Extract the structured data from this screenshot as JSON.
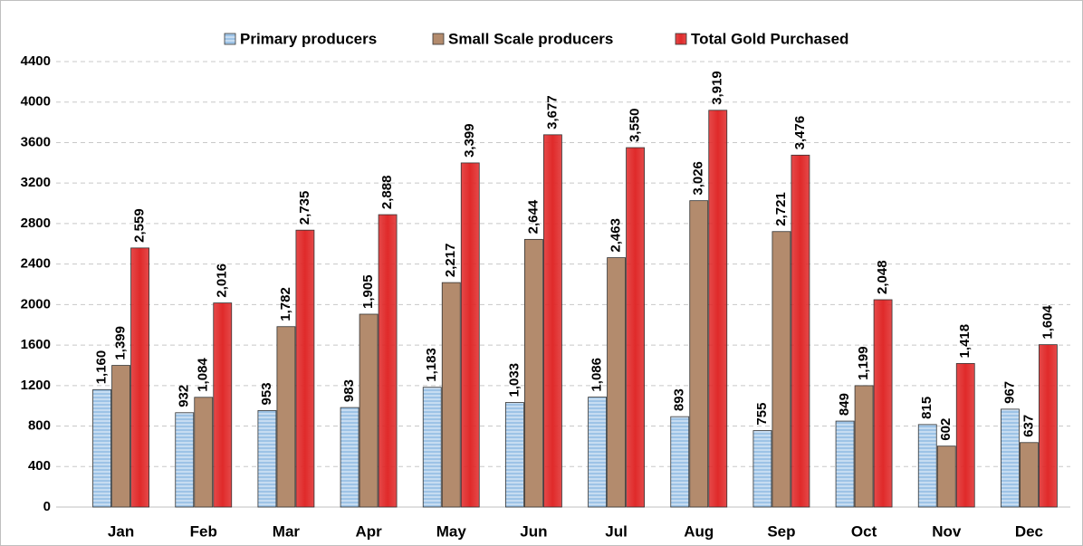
{
  "chart_data": {
    "type": "bar",
    "categories": [
      "Jan",
      "Feb",
      "Mar",
      "Apr",
      "May",
      "Jun",
      "Jul",
      "Aug",
      "Sep",
      "Oct",
      "Nov",
      "Dec"
    ],
    "series": [
      {
        "name": "Primary producers",
        "color": "#9dc3e6",
        "values": [
          1160,
          932,
          953,
          983,
          1183,
          1033,
          1086,
          893,
          755,
          849,
          815,
          967
        ],
        "value_labels": [
          "1,160",
          "932",
          "953",
          "983",
          "1,183",
          "1,033",
          "1,086",
          "893",
          "755",
          "849",
          "815",
          "967"
        ]
      },
      {
        "name": "Small Scale producers",
        "color": "#b38b6d",
        "values": [
          1399,
          1084,
          1782,
          1905,
          2217,
          2644,
          2463,
          3026,
          2721,
          1199,
          602,
          637
        ],
        "value_labels": [
          "1,399",
          "1,084",
          "1,782",
          "1,905",
          "2,217",
          "2,644",
          "2,463",
          "3,026",
          "2,721",
          "1,199",
          "602",
          "637"
        ]
      },
      {
        "name": "Total Gold Purchased",
        "color": "#e02a2a",
        "values": [
          2559,
          2016,
          2735,
          2888,
          3399,
          3677,
          3550,
          3919,
          3476,
          2048,
          1418,
          1604
        ],
        "value_labels": [
          "2,559",
          "2,016",
          "2,735",
          "2,888",
          "3,399",
          "3,677",
          "3,550",
          "3,919",
          "3,476",
          "2,048",
          "1,418",
          "1,604"
        ]
      }
    ],
    "ylim": [
      0,
      4400
    ],
    "yticks": [
      0,
      400,
      800,
      1200,
      1600,
      2000,
      2400,
      2800,
      3200,
      3600,
      4000,
      4400
    ],
    "grid": true,
    "legend": "top"
  }
}
